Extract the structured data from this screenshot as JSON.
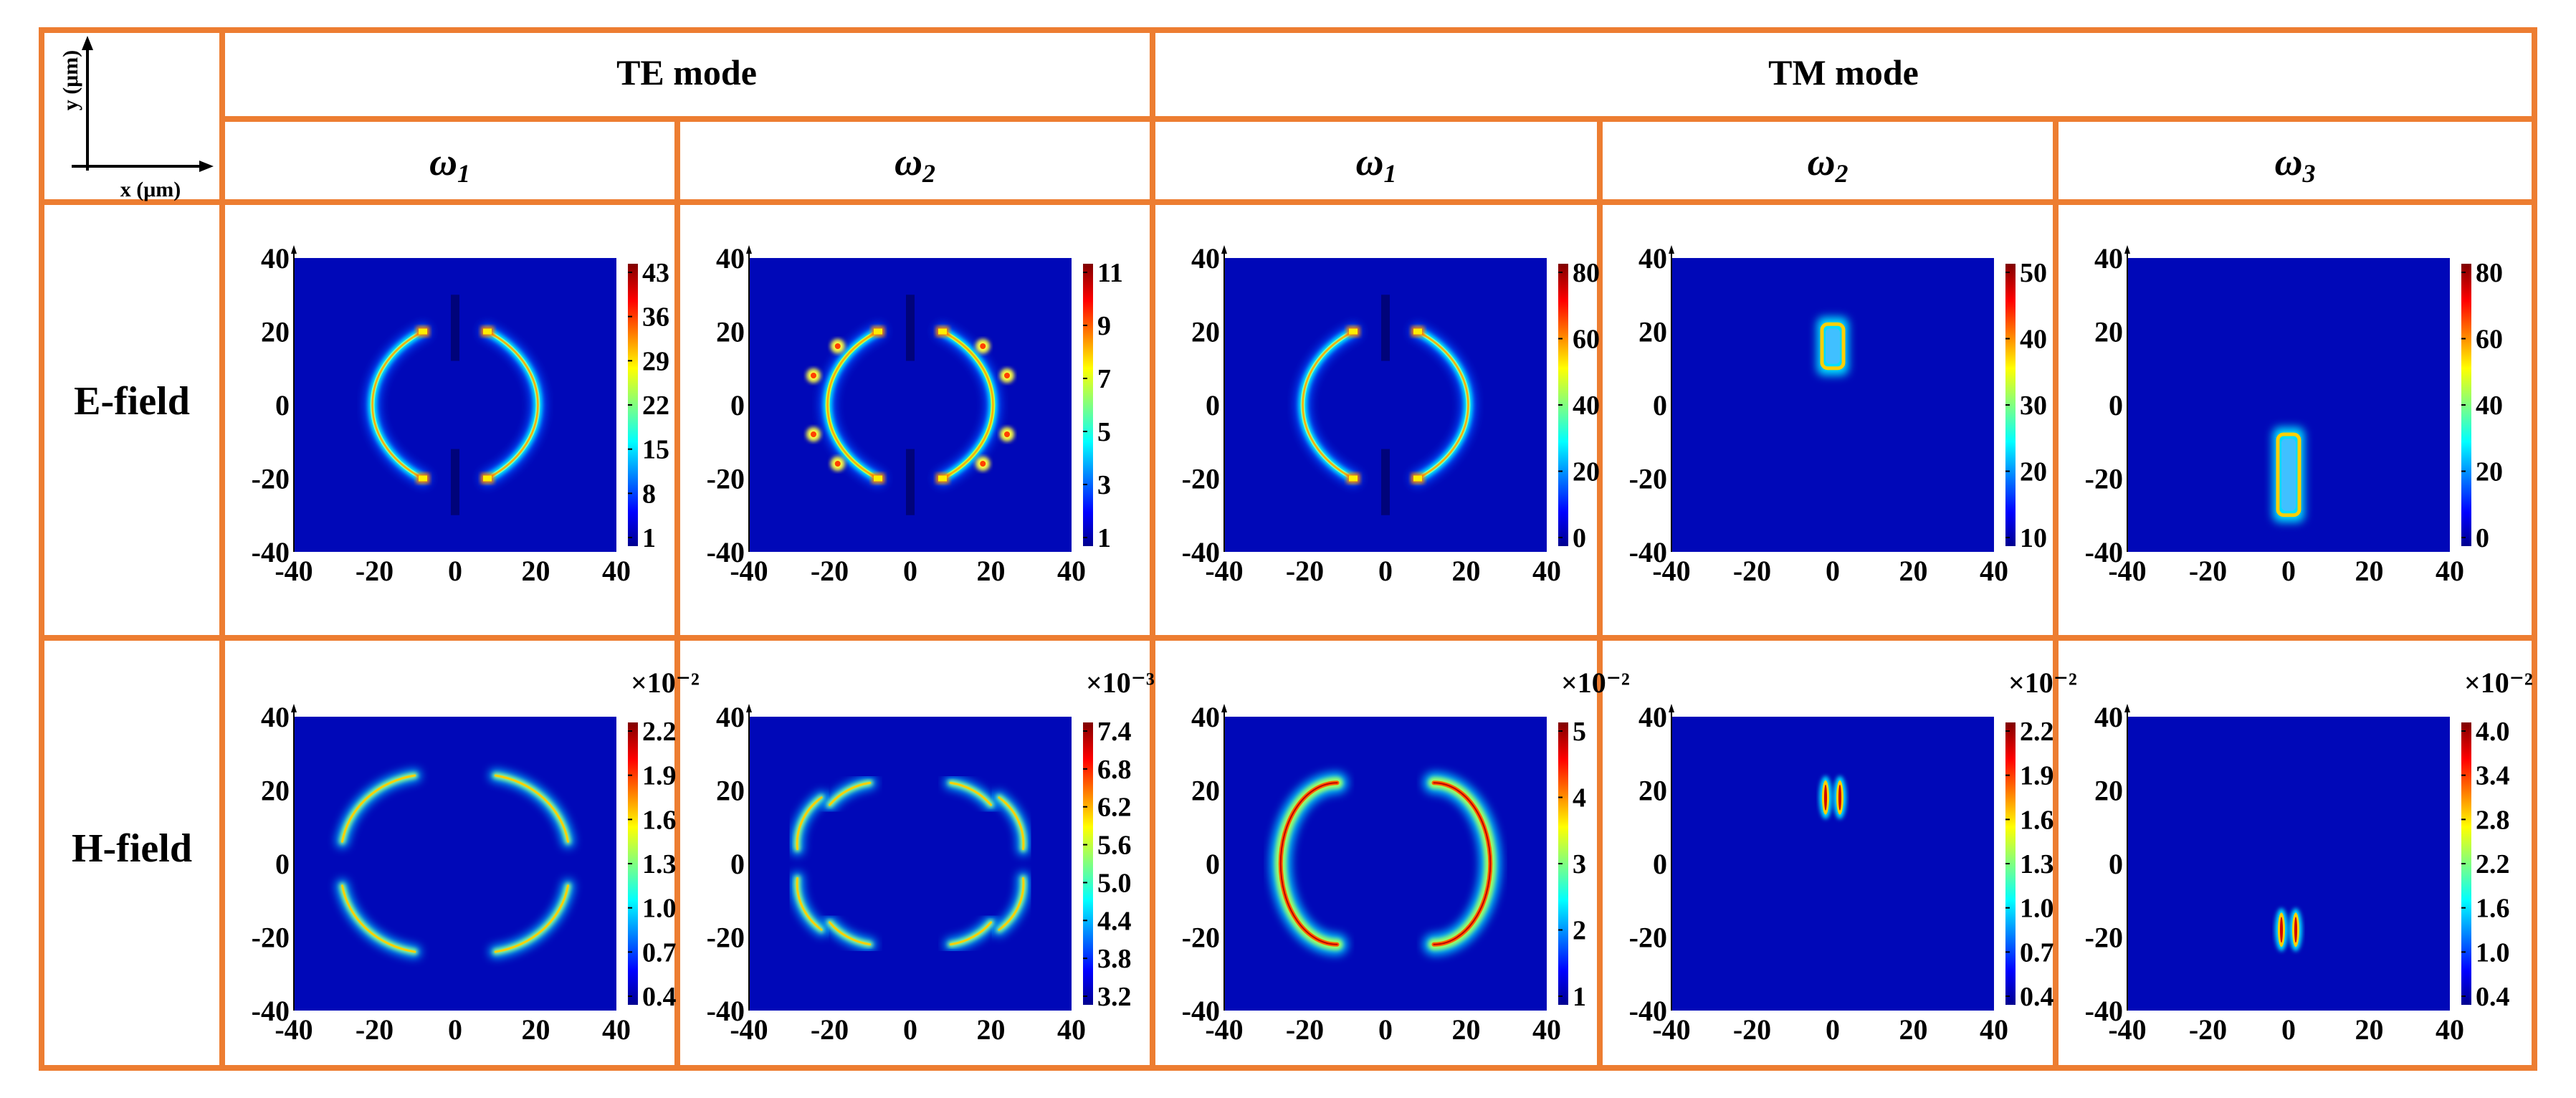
{
  "header": {
    "te_mode": "TE mode",
    "tm_mode": "TM mode",
    "axis_x_label": "x (μm)",
    "axis_y_label": "y (μm)",
    "columns": [
      {
        "symbol": "ω",
        "sub": "1",
        "mode": "TE"
      },
      {
        "symbol": "ω",
        "sub": "2",
        "mode": "TE"
      },
      {
        "symbol": "ω",
        "sub": "1",
        "mode": "TM"
      },
      {
        "symbol": "ω",
        "sub": "2",
        "mode": "TM"
      },
      {
        "symbol": "ω",
        "sub": "3",
        "mode": "TM"
      }
    ]
  },
  "rows": [
    {
      "label": "E-field"
    },
    {
      "label": "H-field"
    }
  ],
  "colors": {
    "border": "#ED7D31",
    "background_field": "#0000A8",
    "colormap": [
      "#00008f",
      "#0000ff",
      "#0080ff",
      "#00ffff",
      "#80ff80",
      "#ffff00",
      "#ff8000",
      "#ff0000",
      "#800000"
    ]
  },
  "chart_data": [
    {
      "type": "heatmap",
      "row": "E-field",
      "mode": "TE",
      "frequency": "ω1",
      "xlim": [
        -40,
        40
      ],
      "ylim": [
        -40,
        40
      ],
      "xticks": [
        "-40",
        "-20",
        "0",
        "20",
        "40"
      ],
      "yticks": [
        "40",
        "20",
        "0",
        "-20",
        "-40"
      ],
      "pattern": "split-ring-bright",
      "colorbar_ticks": [
        "43",
        "36",
        "29",
        "22",
        "15",
        "8",
        "1"
      ],
      "multiplier": ""
    },
    {
      "type": "heatmap",
      "row": "E-field",
      "mode": "TE",
      "frequency": "ω2",
      "xlim": [
        -40,
        40
      ],
      "ylim": [
        -40,
        40
      ],
      "xticks": [
        "-40",
        "-20",
        "0",
        "20",
        "40"
      ],
      "yticks": [
        "40",
        "20",
        "0",
        "-20",
        "-40"
      ],
      "pattern": "split-ring-segmented",
      "colorbar_ticks": [
        "11",
        "9",
        "7",
        "5",
        "3",
        "1"
      ],
      "multiplier": ""
    },
    {
      "type": "heatmap",
      "row": "E-field",
      "mode": "TM",
      "frequency": "ω1",
      "xlim": [
        -40,
        40
      ],
      "ylim": [
        -40,
        40
      ],
      "xticks": [
        "-40",
        "-20",
        "0",
        "20",
        "40"
      ],
      "yticks": [
        "40",
        "20",
        "0",
        "-20",
        "-40"
      ],
      "pattern": "split-ring-bright",
      "colorbar_ticks": [
        "80",
        "60",
        "40",
        "20",
        "0"
      ],
      "multiplier": ""
    },
    {
      "type": "heatmap",
      "row": "E-field",
      "mode": "TM",
      "frequency": "ω2",
      "xlim": [
        -40,
        40
      ],
      "ylim": [
        -40,
        40
      ],
      "xticks": [
        "-40",
        "-20",
        "0",
        "20",
        "40"
      ],
      "yticks": [
        "40",
        "20",
        "0",
        "-20",
        "-40"
      ],
      "pattern": "bar-top",
      "colorbar_ticks": [
        "50",
        "40",
        "30",
        "20",
        "10"
      ],
      "multiplier": ""
    },
    {
      "type": "heatmap",
      "row": "E-field",
      "mode": "TM",
      "frequency": "ω3",
      "xlim": [
        -40,
        40
      ],
      "ylim": [
        -40,
        40
      ],
      "xticks": [
        "-40",
        "-20",
        "0",
        "20",
        "40"
      ],
      "yticks": [
        "40",
        "20",
        "0",
        "-20",
        "-40"
      ],
      "pattern": "bar-bottom",
      "colorbar_ticks": [
        "80",
        "60",
        "40",
        "20",
        "0"
      ],
      "multiplier": ""
    },
    {
      "type": "heatmap",
      "row": "H-field",
      "mode": "TE",
      "frequency": "ω1",
      "xlim": [
        -40,
        40
      ],
      "ylim": [
        -40,
        40
      ],
      "xticks": [
        "-40",
        "-20",
        "0",
        "20",
        "40"
      ],
      "yticks": [
        "40",
        "20",
        "0",
        "-20",
        "-40"
      ],
      "pattern": "arcs-four",
      "colorbar_ticks": [
        "2.2",
        "1.9",
        "1.6",
        "1.3",
        "1.0",
        "0.7",
        "0.4"
      ],
      "multiplier": "×10⁻²"
    },
    {
      "type": "heatmap",
      "row": "H-field",
      "mode": "TE",
      "frequency": "ω2",
      "xlim": [
        -40,
        40
      ],
      "ylim": [
        -40,
        40
      ],
      "xticks": [
        "-40",
        "-20",
        "0",
        "20",
        "40"
      ],
      "yticks": [
        "40",
        "20",
        "0",
        "-20",
        "-40"
      ],
      "pattern": "arcs-segmented",
      "colorbar_ticks": [
        "7.4",
        "6.8",
        "6.2",
        "5.6",
        "5.0",
        "4.4",
        "3.8",
        "3.2"
      ],
      "multiplier": "×10⁻³"
    },
    {
      "type": "heatmap",
      "row": "H-field",
      "mode": "TM",
      "frequency": "ω1",
      "xlim": [
        -40,
        40
      ],
      "ylim": [
        -40,
        40
      ],
      "xticks": [
        "-40",
        "-20",
        "0",
        "20",
        "40"
      ],
      "yticks": [
        "40",
        "20",
        "0",
        "-20",
        "-40"
      ],
      "pattern": "crescents",
      "colorbar_ticks": [
        "5",
        "4",
        "3",
        "2",
        "1"
      ],
      "multiplier": "×10⁻²"
    },
    {
      "type": "heatmap",
      "row": "H-field",
      "mode": "TM",
      "frequency": "ω2",
      "xlim": [
        -40,
        40
      ],
      "ylim": [
        -40,
        40
      ],
      "xticks": [
        "-40",
        "-20",
        "0",
        "20",
        "40"
      ],
      "yticks": [
        "40",
        "20",
        "0",
        "-20",
        "-40"
      ],
      "pattern": "pair-top",
      "colorbar_ticks": [
        "2.2",
        "1.9",
        "1.6",
        "1.3",
        "1.0",
        "0.7",
        "0.4"
      ],
      "multiplier": "×10⁻²"
    },
    {
      "type": "heatmap",
      "row": "H-field",
      "mode": "TM",
      "frequency": "ω3",
      "xlim": [
        -40,
        40
      ],
      "ylim": [
        -40,
        40
      ],
      "xticks": [
        "-40",
        "-20",
        "0",
        "20",
        "40"
      ],
      "yticks": [
        "40",
        "20",
        "0",
        "-20",
        "-40"
      ],
      "pattern": "pair-bottom",
      "colorbar_ticks": [
        "4.0",
        "3.4",
        "2.8",
        "2.2",
        "1.6",
        "1.0",
        "0.4"
      ],
      "multiplier": "×10⁻²"
    }
  ]
}
